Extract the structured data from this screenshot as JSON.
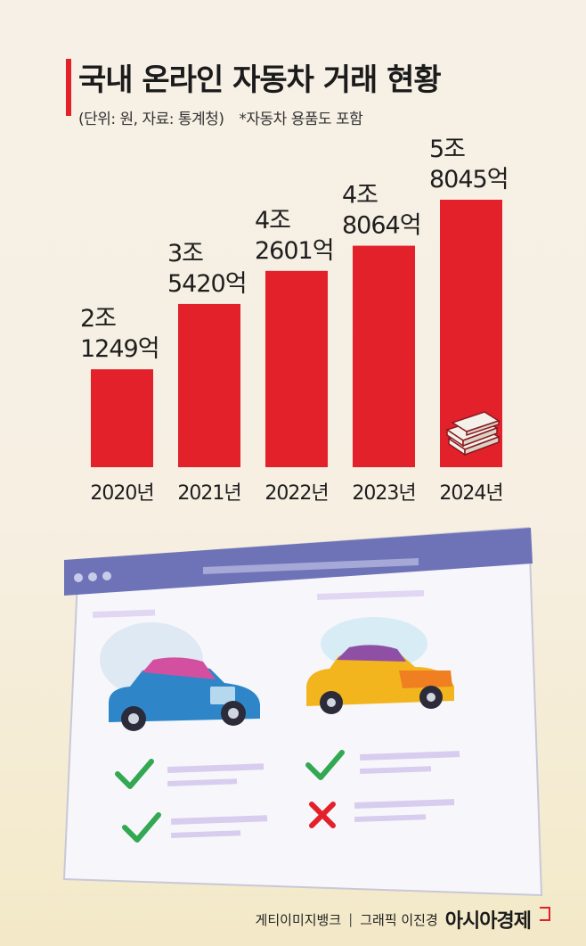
{
  "header": {
    "title": "국내 온라인 자동차 거래 현황",
    "source": "(단위: 원, 자료: 통계청)",
    "note": "*자동차 용품도 포함"
  },
  "chart_data": {
    "type": "bar",
    "title": "국내 온라인 자동차 거래 현황",
    "unit": "원",
    "categories": [
      "2020년",
      "2021년",
      "2022년",
      "2023년",
      "2024년"
    ],
    "values": [
      21249,
      35420,
      42601,
      48064,
      58045
    ],
    "value_units": "억원",
    "labels": [
      [
        "2조",
        "1249억"
      ],
      [
        "3조",
        "5420억"
      ],
      [
        "4조",
        "2601억"
      ],
      [
        "4조",
        "8064억"
      ],
      [
        "5조",
        "8045억"
      ]
    ],
    "ylim": [
      0,
      58045
    ],
    "grid": false,
    "bar_color": "#e3212b"
  },
  "illustration": {
    "icons": [
      "money-stack-icon",
      "browser-window-icon",
      "blue-car-icon",
      "yellow-car-icon",
      "check-icon",
      "cross-icon"
    ],
    "colors": {
      "window": "#6e73b8",
      "check": "#33a853",
      "cross": "#e3212b"
    }
  },
  "footer": {
    "credit": "게티이미지뱅크",
    "separator": "|",
    "graphic": "그래픽 이진경",
    "logo": "아시아경제"
  }
}
